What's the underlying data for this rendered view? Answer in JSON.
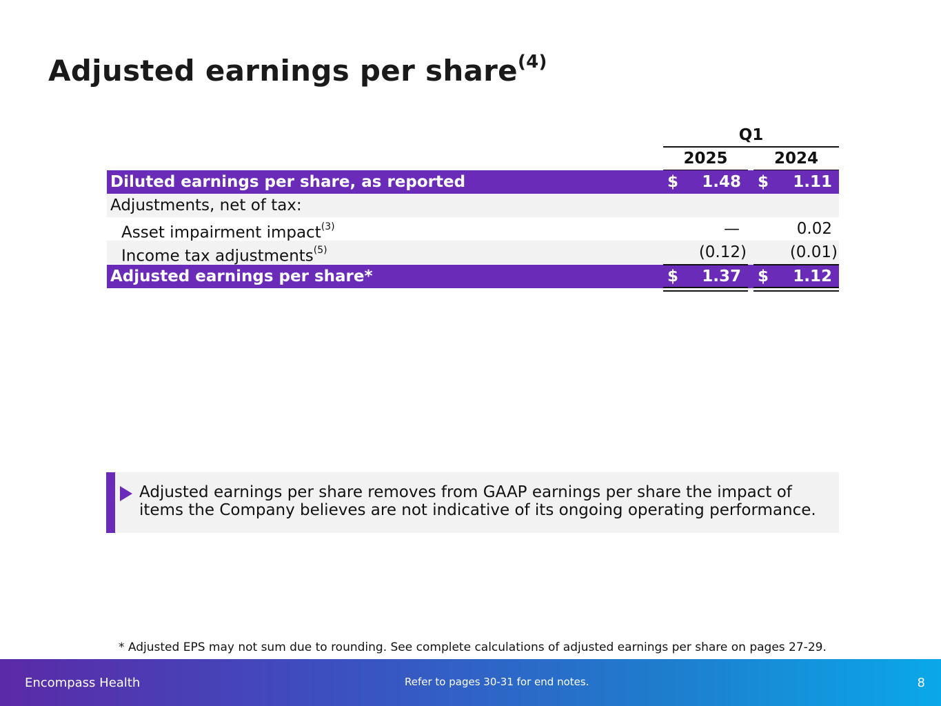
{
  "title": {
    "text": "Adjusted earnings per share",
    "sup": "(4)"
  },
  "table": {
    "period_header": "Q1",
    "years": [
      "2025",
      "2024"
    ],
    "rows": [
      {
        "label": "Diluted earnings per share, as reported",
        "sup": "",
        "dollar1": "$",
        "v1": "1.48",
        "dollar2": "$",
        "v2": "1.11"
      },
      {
        "label": "Adjustments, net of tax:",
        "sup": "",
        "dollar1": "",
        "v1": "",
        "dollar2": "",
        "v2": ""
      },
      {
        "label": "Asset impairment impact",
        "sup": "(3)",
        "dollar1": "",
        "v1": "—",
        "dollar2": "",
        "v2": "0.02"
      },
      {
        "label": "Income tax adjustments",
        "sup": "(5)",
        "dollar1": "",
        "v1": "(0.12)",
        "dollar2": "",
        "v2": "(0.01)"
      },
      {
        "label": "Adjusted earnings per share*",
        "sup": "",
        "dollar1": "$",
        "v1": "1.37",
        "dollar2": "$",
        "v2": "1.12"
      }
    ]
  },
  "callout": {
    "text": "Adjusted earnings per share removes from GAAP earnings per share the impact of items the Company believes are not indicative of its ongoing operating performance."
  },
  "footnote": "*  Adjusted EPS may not sum due to rounding. See complete calculations of adjusted earnings per share on pages 27-29.",
  "footer": {
    "brand": "Encompass Health",
    "notes": "Refer to pages 30-31 for end notes.",
    "page": "8"
  },
  "colors": {
    "accent_purple": "#6a2bb9",
    "row_gray": "#f2f2f2",
    "footer_gradient_start": "#5b2aa8",
    "footer_gradient_end": "#0aa8e8"
  }
}
